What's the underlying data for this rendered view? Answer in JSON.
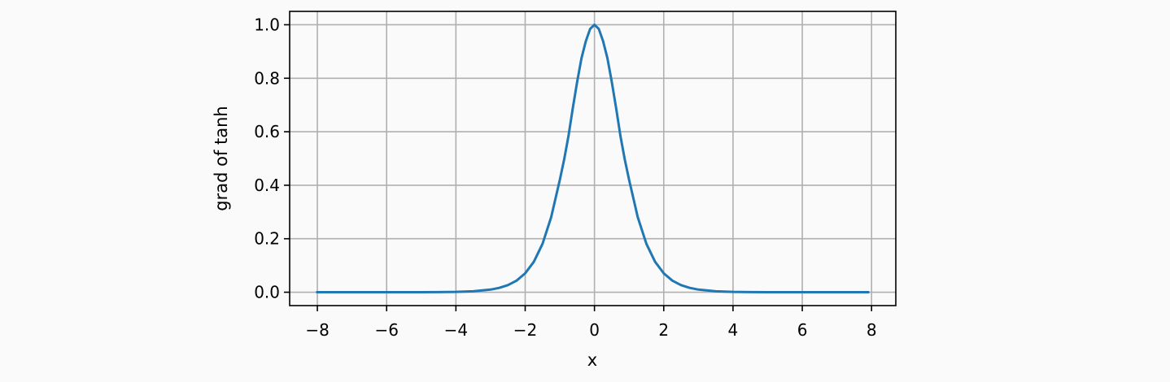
{
  "chart_data": {
    "type": "line",
    "title": "",
    "xlabel": "x",
    "ylabel": "grad of tanh",
    "xlim": [
      -8.8,
      8.7
    ],
    "ylim": [
      -0.05,
      1.05
    ],
    "xticks": [
      -8,
      -6,
      -4,
      -2,
      0,
      2,
      4,
      6,
      8
    ],
    "xtick_labels": [
      "−8",
      "−6",
      "−4",
      "−2",
      "0",
      "2",
      "4",
      "6",
      "8"
    ],
    "yticks": [
      0.0,
      0.2,
      0.4,
      0.6,
      0.8,
      1.0
    ],
    "ytick_labels": [
      "0.0",
      "0.2",
      "0.4",
      "0.6",
      "0.8",
      "1.0"
    ],
    "grid": true,
    "series": [
      {
        "color": "#1f77b4",
        "x": [
          -8.0,
          -7.0,
          -6.0,
          -5.0,
          -4.5,
          -4.0,
          -3.5,
          -3.0,
          -2.75,
          -2.5,
          -2.25,
          -2.0,
          -1.75,
          -1.5,
          -1.25,
          -1.0,
          -0.875,
          -0.75,
          -0.625,
          -0.5,
          -0.375,
          -0.25,
          -0.125,
          0.0,
          0.125,
          0.25,
          0.375,
          0.5,
          0.625,
          0.75,
          0.875,
          1.0,
          1.25,
          1.5,
          1.75,
          2.0,
          2.25,
          2.5,
          2.75,
          3.0,
          3.5,
          4.0,
          4.5,
          5.0,
          6.0,
          7.0,
          7.9
        ],
        "y": [
          0.0,
          0.0,
          0.0,
          0.0002,
          0.0005,
          0.0013,
          0.0036,
          0.0099,
          0.0163,
          0.0266,
          0.0433,
          0.0707,
          0.1139,
          0.1807,
          0.2805,
          0.42,
          0.4963,
          0.5841,
          0.6886,
          0.7864,
          0.8746,
          0.9383,
          0.9845,
          1.0,
          0.9845,
          0.9383,
          0.8746,
          0.7864,
          0.6886,
          0.5841,
          0.4963,
          0.42,
          0.2805,
          0.1807,
          0.1139,
          0.0707,
          0.0433,
          0.0266,
          0.0163,
          0.0099,
          0.0036,
          0.0013,
          0.0005,
          0.0002,
          0.0,
          0.0,
          0.0
        ]
      }
    ]
  }
}
